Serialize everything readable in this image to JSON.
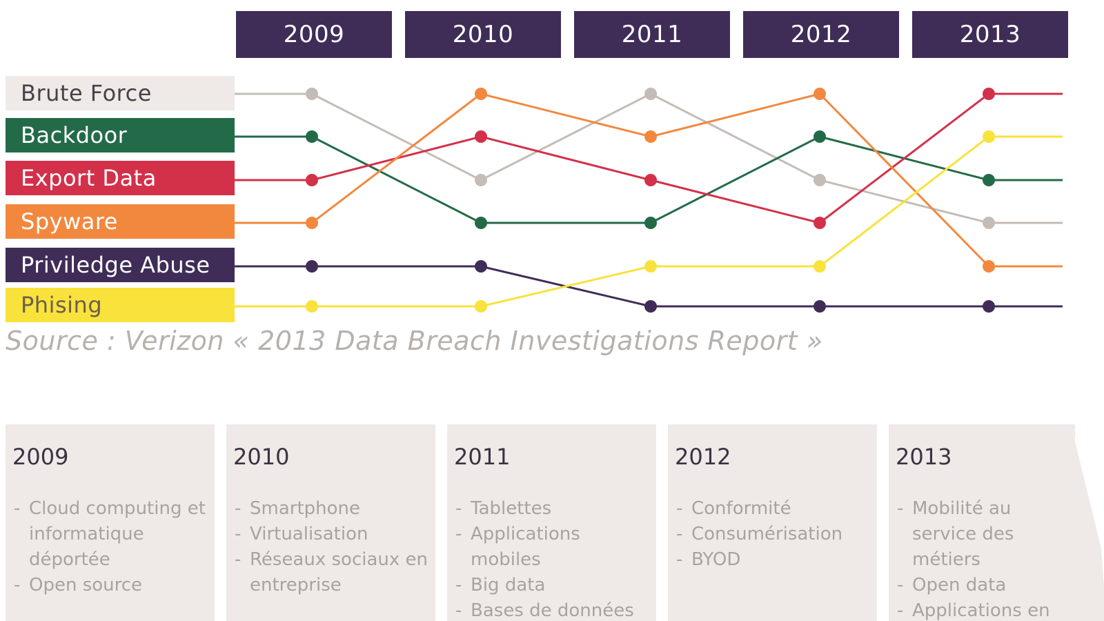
{
  "colors": {
    "header_bg": "#3f2d58",
    "timeline_bg": "#efeae8",
    "source_text": "#b6b1ad"
  },
  "chart_data": {
    "type": "line",
    "title": "",
    "description_axis": "rank",
    "x": [
      "2009",
      "2010",
      "2011",
      "2012",
      "2013"
    ],
    "ylim": [
      6,
      1
    ],
    "series": [
      {
        "name": "Brute Force",
        "color": "#c4bcb6",
        "label_bg": "#efeae8",
        "label_text_color": "#4a4048",
        "values": [
          1,
          3,
          1,
          3,
          4
        ]
      },
      {
        "name": "Backdoor",
        "color": "#236b48",
        "label_bg": "#236b48",
        "label_text_color": "#ffffff",
        "values": [
          2,
          4,
          4,
          2,
          3
        ]
      },
      {
        "name": "Export Data",
        "color": "#d3304a",
        "label_bg": "#d3304a",
        "label_text_color": "#ffffff",
        "values": [
          3,
          2,
          3,
          4,
          1
        ]
      },
      {
        "name": "Spyware",
        "color": "#f2883e",
        "label_bg": "#f2883e",
        "label_text_color": "#ffffff",
        "values": [
          4,
          1,
          2,
          1,
          5
        ]
      },
      {
        "name": "Priviledge Abuse",
        "color": "#3f2d58",
        "label_bg": "#3f2d58",
        "label_text_color": "#ffffff",
        "values": [
          5,
          5,
          6,
          6,
          6
        ]
      },
      {
        "name": "Phising",
        "color": "#f9e23c",
        "label_bg": "#f9e23c",
        "label_text_color": "#6b5f48",
        "values": [
          6,
          6,
          5,
          5,
          2
        ]
      }
    ],
    "source": "Source : Verizon « 2013 Data Breach Investigations Report »"
  },
  "timeline": [
    {
      "year": "2009",
      "items": [
        "Cloud computing et informatique déportée",
        "Open source"
      ]
    },
    {
      "year": "2010",
      "items": [
        "Smartphone",
        "Virtualisation",
        "Réseaux sociaux en entreprise"
      ]
    },
    {
      "year": "2011",
      "items": [
        "Tablettes",
        "Applications mobiles",
        "Big data",
        "Bases de données en"
      ]
    },
    {
      "year": "2012",
      "items": [
        "Conformité",
        "Consumérisation",
        "BYOD"
      ]
    },
    {
      "year": "2013",
      "items": [
        "Mobilité au service des métiers",
        "Open data",
        "Applications en entreprises"
      ]
    }
  ]
}
